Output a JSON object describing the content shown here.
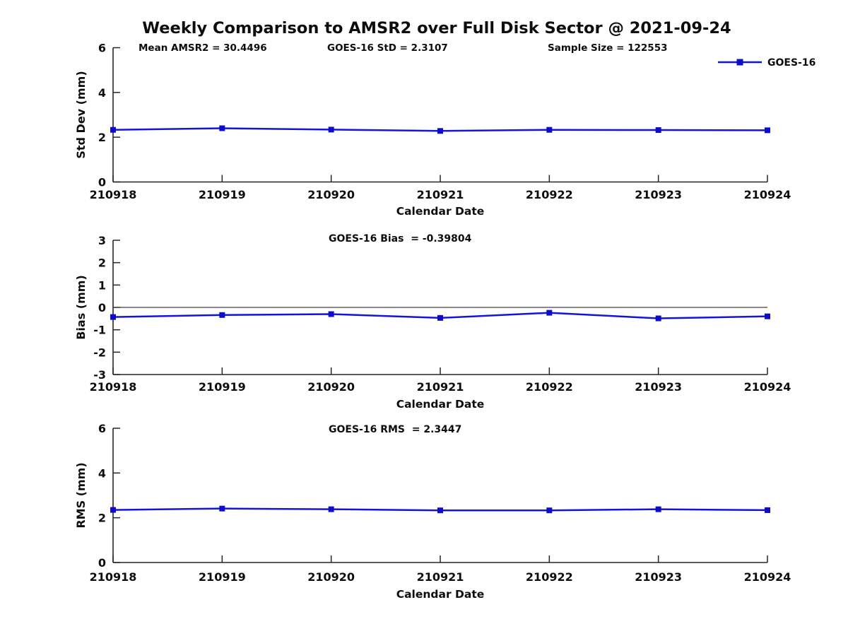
{
  "page": {
    "title": "Weekly Comparison to AMSR2 over Full Disk Sector @ 2021-09-24",
    "background": "#ffffff"
  },
  "header_annotations": {
    "mean_amsr2": "Mean AMSR2 = 30.4496",
    "goes16_std": "GOES-16 StD = 2.3107",
    "sample_size": "Sample Size = 122553"
  },
  "legend": {
    "label": "GOES-16",
    "position": "top-right"
  },
  "colors": {
    "line": "#1414dd",
    "marker": "#0d0dc8",
    "axis": "#262626",
    "zero_line": "#404040",
    "text": "#0d0d0d"
  },
  "xlabel": "Calendar Date",
  "categories": [
    "210918",
    "210919",
    "210920",
    "210921",
    "210922",
    "210923",
    "210924"
  ],
  "chart_data": [
    {
      "type": "line",
      "name": "std_dev",
      "ylabel": "Std Dev (mm)",
      "annotation": "",
      "series": [
        {
          "name": "GOES-16",
          "values": [
            2.33,
            2.4,
            2.34,
            2.28,
            2.33,
            2.32,
            2.31
          ]
        }
      ],
      "categories": [
        "210918",
        "210919",
        "210920",
        "210921",
        "210922",
        "210923",
        "210924"
      ],
      "ylim": [
        0,
        6
      ],
      "yticks": [
        0,
        2,
        4,
        6
      ],
      "zero_line": false,
      "grid": false,
      "legend": "GOES-16"
    },
    {
      "type": "line",
      "name": "bias",
      "ylabel": "Bias (mm)",
      "annotation": "GOES-16 Bias  = -0.39804",
      "series": [
        {
          "name": "GOES-16",
          "values": [
            -0.43,
            -0.34,
            -0.3,
            -0.47,
            -0.24,
            -0.49,
            -0.4
          ]
        }
      ],
      "categories": [
        "210918",
        "210919",
        "210920",
        "210921",
        "210922",
        "210923",
        "210924"
      ],
      "ylim": [
        -3,
        3
      ],
      "yticks": [
        -3,
        -2,
        -1,
        0,
        1,
        2,
        3
      ],
      "zero_line": true,
      "grid": false,
      "legend": "GOES-16"
    },
    {
      "type": "line",
      "name": "rms",
      "ylabel": "RMS (mm)",
      "annotation": "GOES-16 RMS  = 2.3447",
      "series": [
        {
          "name": "GOES-16",
          "values": [
            2.35,
            2.41,
            2.38,
            2.33,
            2.33,
            2.38,
            2.34
          ]
        }
      ],
      "categories": [
        "210918",
        "210919",
        "210920",
        "210921",
        "210922",
        "210923",
        "210924"
      ],
      "ylim": [
        0,
        6
      ],
      "yticks": [
        0,
        2,
        4,
        6
      ],
      "zero_line": false,
      "grid": false,
      "legend": "GOES-16"
    }
  ]
}
